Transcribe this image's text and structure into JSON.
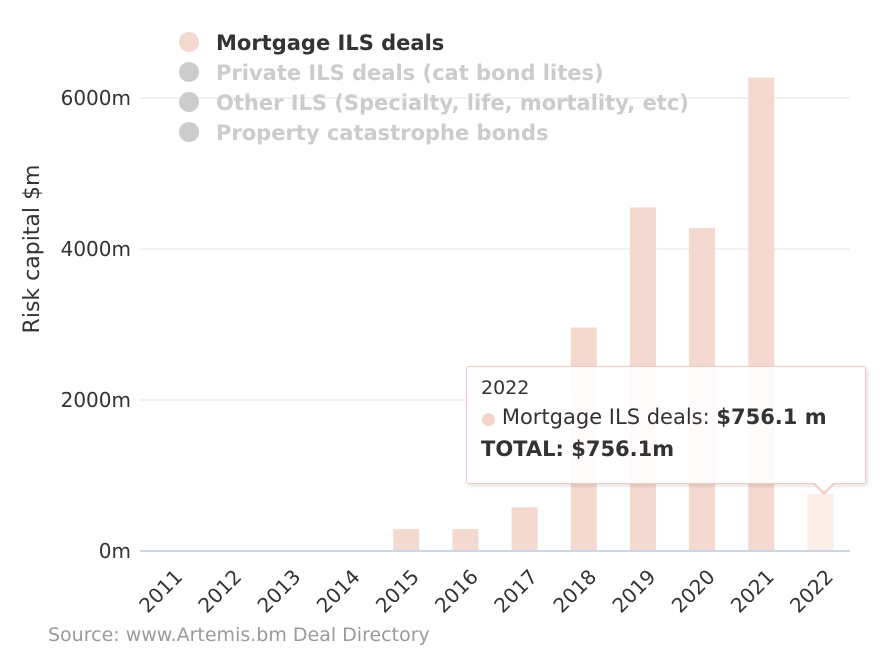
{
  "chart_data": {
    "type": "bar",
    "categories": [
      "2011",
      "2012",
      "2013",
      "2014",
      "2015",
      "2016",
      "2017",
      "2018",
      "2019",
      "2020",
      "2021",
      "2022"
    ],
    "series": [
      {
        "name": "Mortgage ILS deals",
        "values": [
          0,
          0,
          0,
          0,
          290,
          290,
          580,
          2960,
          4550,
          4280,
          6270,
          756.1
        ],
        "color": "#f4d9d0",
        "visible": true
      },
      {
        "name": "Private ILS deals (cat bond lites)",
        "color": "#cccccc",
        "visible": false
      },
      {
        "name": "Other ILS (Specialty, life, mortality, etc)",
        "color": "#cccccc",
        "visible": false
      },
      {
        "name": "Property catastrophe bonds",
        "color": "#cccccc",
        "visible": false
      }
    ],
    "ylabel": "Risk capital $m",
    "ylim": [
      0,
      6600
    ],
    "yticks": [
      0,
      2000,
      4000,
      6000
    ],
    "ytick_labels": [
      "0m",
      "2000m",
      "4000m",
      "6000m"
    ],
    "grid": true,
    "legend_position": "top-left",
    "hovered_category": "2022",
    "hover_color": "#fdeee7"
  },
  "tooltip": {
    "title": "2022",
    "series_label": "Mortgage ILS deals:",
    "series_value": "$756.1 m",
    "total": "TOTAL: $756.1m"
  },
  "source": "Source: www.Artemis.bm Deal Directory",
  "colors": {
    "legend_active_text": "#333333",
    "legend_inactive_text": "#cccccc",
    "axis_text": "#333333",
    "grid": "#e6e6e6",
    "axis_line": "#ccd6eb"
  }
}
